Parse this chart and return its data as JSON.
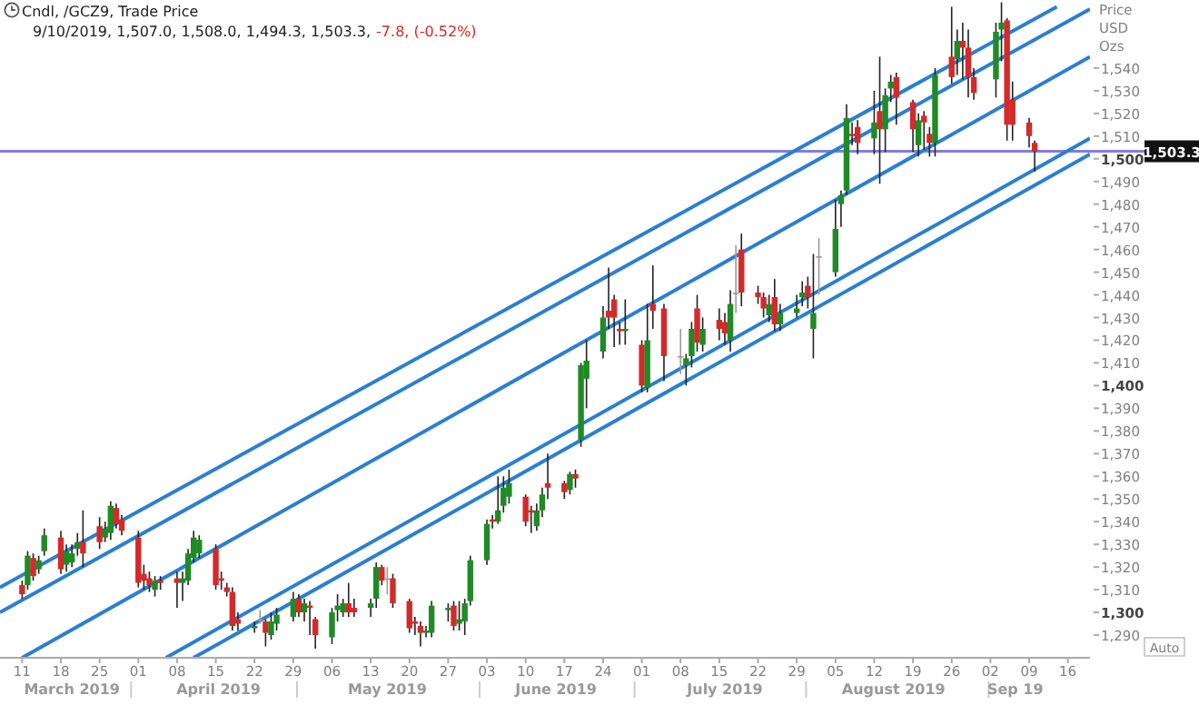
{
  "chart_data": {
    "type": "candlestick",
    "title": "Cndl, /GCZ9, Trade Price",
    "subtitle": "9/10/2019, 1,507.0, 1,508.0, 1,494.3, 1,503.3,",
    "ylabel": "Price USD Ozs",
    "annotations": [
      "-7.8, (-0.52%)",
      "Auto",
      "March 2019",
      "April 2019",
      "May 2019",
      "June 2019",
      "July 2019",
      "August 2019",
      "Sep 19"
    ],
    "x": [
      "2019-03-11",
      "2019-03-12",
      "2019-03-13",
      "2019-03-14",
      "2019-03-15",
      "2019-03-18",
      "2019-03-19",
      "2019-03-20",
      "2019-03-21",
      "2019-03-22",
      "2019-03-25",
      "2019-03-26",
      "2019-03-27",
      "2019-03-28",
      "2019-03-29",
      "2019-04-01",
      "2019-04-02",
      "2019-04-03",
      "2019-04-04",
      "2019-04-05",
      "2019-04-08",
      "2019-04-09",
      "2019-04-10",
      "2019-04-11",
      "2019-04-12",
      "2019-04-15",
      "2019-04-16",
      "2019-04-17",
      "2019-04-18",
      "2019-04-19",
      "2019-04-22",
      "2019-04-23",
      "2019-04-24",
      "2019-04-25",
      "2019-04-26",
      "2019-04-29",
      "2019-04-30",
      "2019-05-01",
      "2019-05-02",
      "2019-05-03",
      "2019-05-06",
      "2019-05-07",
      "2019-05-08",
      "2019-05-09",
      "2019-05-10",
      "2019-05-13",
      "2019-05-14",
      "2019-05-15",
      "2019-05-16",
      "2019-05-17",
      "2019-05-20",
      "2019-05-21",
      "2019-05-22",
      "2019-05-23",
      "2019-05-24",
      "2019-05-27",
      "2019-05-28",
      "2019-05-29",
      "2019-05-30",
      "2019-05-31",
      "2019-06-03",
      "2019-06-04",
      "2019-06-05",
      "2019-06-06",
      "2019-06-07",
      "2019-06-10",
      "2019-06-11",
      "2019-06-12",
      "2019-06-13",
      "2019-06-14",
      "2019-06-17",
      "2019-06-18",
      "2019-06-19",
      "2019-06-20",
      "2019-06-21",
      "2019-06-24",
      "2019-06-25",
      "2019-06-26",
      "2019-06-27",
      "2019-06-28",
      "2019-07-01",
      "2019-07-02",
      "2019-07-03",
      "2019-07-05",
      "2019-07-08",
      "2019-07-09",
      "2019-07-10",
      "2019-07-11",
      "2019-07-12",
      "2019-07-15",
      "2019-07-16",
      "2019-07-17",
      "2019-07-18",
      "2019-07-19",
      "2019-07-22",
      "2019-07-23",
      "2019-07-24",
      "2019-07-25",
      "2019-07-26",
      "2019-07-29",
      "2019-07-30",
      "2019-07-31",
      "2019-08-01",
      "2019-08-02",
      "2019-08-05",
      "2019-08-06",
      "2019-08-07",
      "2019-08-08",
      "2019-08-09",
      "2019-08-12",
      "2019-08-13",
      "2019-08-14",
      "2019-08-15",
      "2019-08-16",
      "2019-08-19",
      "2019-08-20",
      "2019-08-21",
      "2019-08-22",
      "2019-08-23",
      "2019-08-26",
      "2019-08-27",
      "2019-08-28",
      "2019-08-29",
      "2019-08-30",
      "2019-09-03",
      "2019-09-04",
      "2019-09-05",
      "2019-09-06",
      "2019-09-09",
      "2019-09-10"
    ],
    "ohlc": [
      [
        1312,
        1314,
        1306,
        1308
      ],
      [
        1312,
        1327,
        1310,
        1325
      ],
      [
        1324,
        1326,
        1314,
        1316
      ],
      [
        1319,
        1325,
        1317,
        1323
      ],
      [
        1327,
        1337,
        1325,
        1334
      ],
      [
        1333,
        1336,
        1317,
        1319
      ],
      [
        1321,
        1330,
        1318,
        1327
      ],
      [
        1322,
        1330,
        1320,
        1326
      ],
      [
        1328,
        1335,
        1325,
        1331
      ],
      [
        1331,
        1345,
        1320,
        1326
      ],
      [
        1338,
        1342,
        1328,
        1331
      ],
      [
        1333,
        1340,
        1331,
        1337
      ],
      [
        1335,
        1349,
        1332,
        1347
      ],
      [
        1346,
        1348,
        1337,
        1339
      ],
      [
        1341,
        1343,
        1334,
        1336
      ],
      [
        1333,
        1336,
        1311,
        1313
      ],
      [
        1317,
        1321,
        1310,
        1314
      ],
      [
        1315,
        1318,
        1309,
        1312
      ],
      [
        1310,
        1316,
        1307,
        1314
      ],
      [
        1314,
        1316,
        1310,
        1313
      ],
      [
        1315,
        1318,
        1302,
        1313
      ],
      [
        1313,
        1318,
        1305,
        1315
      ],
      [
        1314,
        1328,
        1312,
        1326
      ],
      [
        1324,
        1336,
        1322,
        1333
      ],
      [
        1326,
        1334,
        1324,
        1332
      ],
      [
        1328,
        1330,
        1310,
        1312
      ],
      [
        1315,
        1318,
        1310,
        1314
      ],
      [
        1311,
        1313,
        1307,
        1309
      ],
      [
        1309,
        1311,
        1292,
        1294
      ],
      [
        1297,
        1300,
        1292,
        1295
      ],
      [
        1293,
        1296,
        1291,
        1294
      ],
      [
        1297,
        1301,
        1295,
        1297
      ],
      [
        1296,
        1297,
        1285,
        1291
      ],
      [
        1290,
        1300,
        1288,
        1296
      ],
      [
        1295,
        1302,
        1292,
        1299
      ],
      [
        1298,
        1309,
        1296,
        1306
      ],
      [
        1306,
        1308,
        1298,
        1300
      ],
      [
        1300,
        1306,
        1296,
        1304
      ],
      [
        1303,
        1305,
        1290,
        1302
      ],
      [
        1297,
        1298,
        1284,
        1290
      ],
      [
        1289,
        1302,
        1286,
        1300
      ],
      [
        1301,
        1308,
        1296,
        1303
      ],
      [
        1300,
        1306,
        1298,
        1304
      ],
      [
        1304,
        1313,
        1298,
        1300
      ],
      [
        1302,
        1306,
        1298,
        1300
      ],
      [
        1302,
        1306,
        1298,
        1304
      ],
      [
        1306,
        1322,
        1302,
        1320
      ],
      [
        1320,
        1321,
        1312,
        1314
      ],
      [
        1315,
        1320,
        1308,
        1315
      ],
      [
        1315,
        1317,
        1302,
        1304
      ],
      [
        1305,
        1306,
        1291,
        1293
      ],
      [
        1296,
        1298,
        1290,
        1295
      ],
      [
        1294,
        1296,
        1285,
        1291
      ],
      [
        1291,
        1294,
        1289,
        1292
      ],
      [
        1291,
        1305,
        1289,
        1303
      ],
      [
        1301,
        1304,
        1296,
        1302
      ],
      [
        1303,
        1305,
        1292,
        1294
      ],
      [
        1295,
        1305,
        1292,
        1297
      ],
      [
        1296,
        1306,
        1290,
        1304
      ],
      [
        1305,
        1325,
        1303,
        1323
      ],
      [
        1323,
        1341,
        1321,
        1339
      ],
      [
        1341,
        1343,
        1337,
        1340
      ],
      [
        1340,
        1360,
        1339,
        1345
      ],
      [
        1347,
        1360,
        1344,
        1355
      ],
      [
        1351,
        1363,
        1348,
        1357
      ],
      [
        1351,
        1352,
        1338,
        1340
      ],
      [
        1345,
        1347,
        1335,
        1344
      ],
      [
        1338,
        1348,
        1336,
        1345
      ],
      [
        1345,
        1355,
        1342,
        1352
      ],
      [
        1357,
        1370,
        1350,
        1355
      ],
      [
        1357,
        1358,
        1350,
        1353
      ],
      [
        1354,
        1362,
        1352,
        1361
      ],
      [
        1361,
        1363,
        1355,
        1359
      ],
      [
        1376,
        1410,
        1373,
        1409
      ],
      [
        1403,
        1420,
        1390,
        1411
      ],
      [
        1415,
        1435,
        1412,
        1430
      ],
      [
        1433,
        1452,
        1425,
        1430
      ],
      [
        1438,
        1440,
        1417,
        1430
      ],
      [
        1425,
        1428,
        1418,
        1424
      ],
      [
        1424,
        1438,
        1418,
        1425
      ],
      [
        1418,
        1420,
        1397,
        1400
      ],
      [
        1399,
        1436,
        1397,
        1420
      ],
      [
        1436,
        1453,
        1425,
        1433
      ],
      [
        1434,
        1436,
        1402,
        1413
      ],
      [
        1413,
        1425,
        1405,
        1413
      ],
      [
        1409,
        1414,
        1400,
        1412
      ],
      [
        1413,
        1428,
        1408,
        1425
      ],
      [
        1434,
        1440,
        1415,
        1419
      ],
      [
        1418,
        1430,
        1415,
        1425
      ],
      [
        1429,
        1434,
        1420,
        1425
      ],
      [
        1428,
        1432,
        1418,
        1423
      ],
      [
        1420,
        1442,
        1415,
        1436
      ],
      [
        1441,
        1462,
        1432,
        1441
      ],
      [
        1460,
        1467,
        1435,
        1441
      ],
      [
        1441,
        1444,
        1436,
        1439
      ],
      [
        1439,
        1441,
        1430,
        1434
      ],
      [
        1431,
        1440,
        1428,
        1436
      ],
      [
        1439,
        1447,
        1424,
        1427
      ],
      [
        1427,
        1436,
        1424,
        1432
      ],
      [
        1432,
        1440,
        1430,
        1434
      ],
      [
        1439,
        1446,
        1435,
        1441
      ],
      [
        1444,
        1448,
        1434,
        1439
      ],
      [
        1425,
        1458,
        1412,
        1432
      ],
      [
        1457,
        1465,
        1440,
        1457
      ],
      [
        1450,
        1482,
        1448,
        1469
      ],
      [
        1480,
        1486,
        1470,
        1484
      ],
      [
        1486,
        1524,
        1484,
        1518
      ],
      [
        1511,
        1516,
        1506,
        1510
      ],
      [
        1514,
        1517,
        1502,
        1507
      ],
      [
        1509,
        1530,
        1502,
        1516
      ],
      [
        1521,
        1545,
        1489,
        1513
      ],
      [
        1513,
        1531,
        1503,
        1528
      ],
      [
        1531,
        1537,
        1525,
        1534
      ],
      [
        1536,
        1538,
        1515,
        1527
      ],
      [
        1525,
        1526,
        1503,
        1513
      ],
      [
        1506,
        1520,
        1501,
        1517
      ],
      [
        1519,
        1521,
        1504,
        1516
      ],
      [
        1511,
        1514,
        1501,
        1507
      ],
      [
        1507,
        1540,
        1501,
        1537
      ],
      [
        1545,
        1567,
        1533,
        1536
      ],
      [
        1544,
        1557,
        1537,
        1552
      ],
      [
        1552,
        1560,
        1535,
        1549
      ],
      [
        1549,
        1557,
        1527,
        1536
      ],
      [
        1536,
        1540,
        1526,
        1529
      ],
      [
        1535,
        1560,
        1527,
        1556
      ],
      [
        1557,
        1569,
        1543,
        1560
      ],
      [
        1561,
        1562,
        1508,
        1515
      ],
      [
        1526,
        1534,
        1508,
        1515
      ],
      [
        1516,
        1518,
        1505,
        1510
      ],
      [
        1507.0,
        1508.0,
        1494.3,
        1503.3
      ]
    ],
    "series": [
      {
        "type": "line",
        "color": "#2b7fd2",
        "x": [
          "2019-03-07",
          "2019-09-14"
        ],
        "values": [
          1311,
          1567
        ]
      },
      {
        "type": "line",
        "color": "#2b7fd2",
        "x": [
          "2019-03-07",
          "2019-09-20"
        ],
        "values": [
          1300,
          1566
        ]
      },
      {
        "type": "line",
        "color": "#2b7fd2",
        "x": [
          "2019-03-11",
          "2019-09-20"
        ],
        "values": [
          1280,
          1545
        ]
      },
      {
        "type": "line",
        "color": "#2b7fd2",
        "x": [
          "2019-04-06",
          "2019-09-20"
        ],
        "values": [
          1280,
          1509
        ]
      },
      {
        "type": "line",
        "color": "#2b7fd2",
        "x": [
          "2019-04-11",
          "2019-09-20"
        ],
        "values": [
          1280,
          1502
        ]
      }
    ],
    "ref_lines": [
      {
        "axis": "y",
        "value": 1503.3,
        "label": "1,503.3",
        "color": "#7f7fdc"
      }
    ],
    "xlim": [
      "2019-03-07",
      "2019-09-20"
    ],
    "xticks": [
      {
        "value": "2019-03-11",
        "label": "11"
      },
      {
        "value": "2019-03-18",
        "label": "18"
      },
      {
        "value": "2019-03-25",
        "label": "25"
      },
      {
        "value": "2019-04-01",
        "label": "01"
      },
      {
        "value": "2019-04-08",
        "label": "08"
      },
      {
        "value": "2019-04-15",
        "label": "15"
      },
      {
        "value": "2019-04-22",
        "label": "22"
      },
      {
        "value": "2019-04-29",
        "label": "29"
      },
      {
        "value": "2019-05-06",
        "label": "06"
      },
      {
        "value": "2019-05-13",
        "label": "13"
      },
      {
        "value": "2019-05-20",
        "label": "20"
      },
      {
        "value": "2019-05-27",
        "label": "27"
      },
      {
        "value": "2019-06-03",
        "label": "03"
      },
      {
        "value": "2019-06-10",
        "label": "10"
      },
      {
        "value": "2019-06-17",
        "label": "17"
      },
      {
        "value": "2019-06-24",
        "label": "24"
      },
      {
        "value": "2019-07-01",
        "label": "01"
      },
      {
        "value": "2019-07-08",
        "label": "08"
      },
      {
        "value": "2019-07-15",
        "label": "15"
      },
      {
        "value": "2019-07-22",
        "label": "22"
      },
      {
        "value": "2019-07-29",
        "label": "29"
      },
      {
        "value": "2019-08-05",
        "label": "05"
      },
      {
        "value": "2019-08-12",
        "label": "12"
      },
      {
        "value": "2019-08-19",
        "label": "19"
      },
      {
        "value": "2019-08-26",
        "label": "26"
      },
      {
        "value": "2019-09-02",
        "label": "02"
      },
      {
        "value": "2019-09-09",
        "label": "09"
      },
      {
        "value": "2019-09-16",
        "label": "16"
      }
    ],
    "ylim": [
      1280,
      1570
    ],
    "yticks": [
      {
        "value": 1290,
        "label": "1,290"
      },
      {
        "value": 1300,
        "label": "1,300"
      },
      {
        "value": 1310,
        "label": "1,310"
      },
      {
        "value": 1320,
        "label": "1,320"
      },
      {
        "value": 1330,
        "label": "1,330"
      },
      {
        "value": 1340,
        "label": "1,340"
      },
      {
        "value": 1350,
        "label": "1,350"
      },
      {
        "value": 1360,
        "label": "1,360"
      },
      {
        "value": 1370,
        "label": "1,370"
      },
      {
        "value": 1380,
        "label": "1,380"
      },
      {
        "value": 1390,
        "label": "1,390"
      },
      {
        "value": 1400,
        "label": "1,400"
      },
      {
        "value": 1410,
        "label": "1,410"
      },
      {
        "value": 1420,
        "label": "1,420"
      },
      {
        "value": 1430,
        "label": "1,430"
      },
      {
        "value": 1440,
        "label": "1,440"
      },
      {
        "value": 1450,
        "label": "1,450"
      },
      {
        "value": 1460,
        "label": "1,460"
      },
      {
        "value": 1470,
        "label": "1,470"
      },
      {
        "value": 1480,
        "label": "1,480"
      },
      {
        "value": 1490,
        "label": "1,490"
      },
      {
        "value": 1500,
        "label": "1,500"
      },
      {
        "value": 1510,
        "label": "1,510"
      },
      {
        "value": 1520,
        "label": "1,520"
      },
      {
        "value": 1530,
        "label": "1,530"
      },
      {
        "value": 1540,
        "label": "1,540"
      }
    ]
  }
}
